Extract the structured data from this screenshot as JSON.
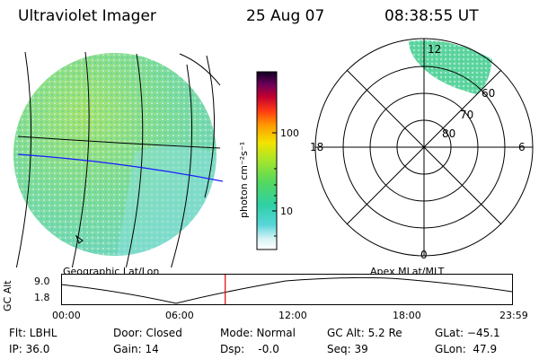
{
  "header": {
    "instrument": "Ultraviolet Imager",
    "date": "25 Aug 07",
    "time": "08:38:55 UT"
  },
  "colorbar": {
    "label": "photon cm⁻²s⁻¹",
    "ticks": [
      "100",
      "10"
    ]
  },
  "left_panel": {
    "caption": "Geographic Lat/Lon"
  },
  "right_panel": {
    "caption": "Apex MLat/MLT",
    "mlt_labels": {
      "top": "12",
      "left": "18",
      "right": "6",
      "bottom": "0"
    },
    "lat_labels": [
      "60",
      "70",
      "80"
    ]
  },
  "altitude_plot": {
    "ylabel": "GC Alt",
    "yticks": [
      "9.0",
      "1.8"
    ],
    "xticks": [
      "00:00",
      "06:00",
      "12:00",
      "18:00",
      "23:59"
    ],
    "current_time_fraction": 0.364
  },
  "status": {
    "flt": "Flt: LBHL",
    "ip": "IP: 36.0",
    "door": "Door: Closed",
    "gain": "Gain: 14",
    "mode": "Mode: Normal",
    "dsp": "Dsp:    -0.0",
    "gc_alt": "GC Alt: 5.2 Re",
    "seq": "Seq: 39",
    "glat": "GLat: −45.1",
    "glon": "GLon:  47.9"
  },
  "colors": {
    "grid_blue": "#1a1aff",
    "time_marker": "#e00000"
  }
}
